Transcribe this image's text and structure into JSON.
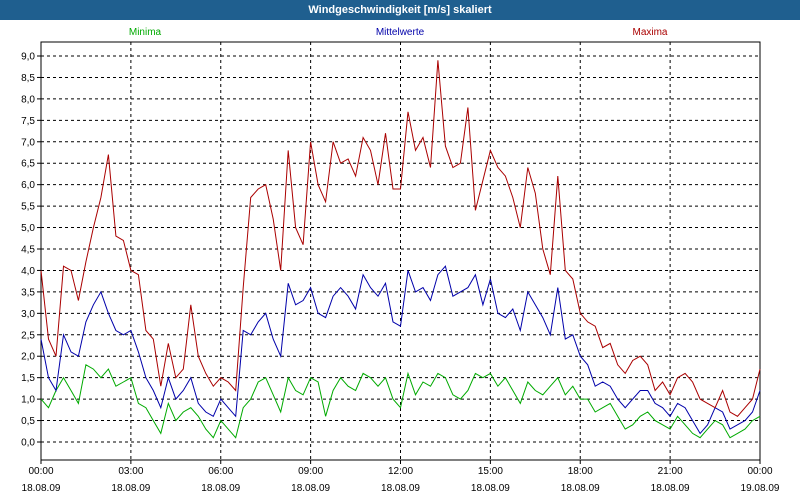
{
  "window": {
    "title": "Windgeschwindigkeit [m/s] skaliert"
  },
  "colors": {
    "minima": "#00aa00",
    "mittelwerte": "#0000aa",
    "maxima": "#aa0000",
    "titlebar": "#1f5f8f",
    "grid": "#000000"
  },
  "chart_data": {
    "type": "line",
    "title": "Windgeschwindigkeit [m/s] skaliert",
    "xlabel": "",
    "ylabel": "",
    "ylim": [
      0.0,
      9.0
    ],
    "ylim_note": "",
    "grid": true,
    "legend_placement": "top",
    "y_ticks": [
      "0,0",
      "0,5",
      "1,0",
      "1,5",
      "2,0",
      "2,5",
      "3,0",
      "3,5",
      "4,0",
      "4,5",
      "5,0",
      "5,5",
      "6,0",
      "6,5",
      "7,0",
      "7,5",
      "8,0",
      "8,5",
      "9,0"
    ],
    "x_ticks": [
      {
        "time": "00:00",
        "date": "18.08.09"
      },
      {
        "time": "03:00",
        "date": "18.08.09"
      },
      {
        "time": "06:00",
        "date": "18.08.09"
      },
      {
        "time": "09:00",
        "date": "18.08.09"
      },
      {
        "time": "12:00",
        "date": "18.08.09"
      },
      {
        "time": "15:00",
        "date": "18.08.09"
      },
      {
        "time": "18:00",
        "date": "18.08.09"
      },
      {
        "time": "21:00",
        "date": "18.08.09"
      },
      {
        "time": "00:00",
        "date": "19.08.09"
      }
    ],
    "x_hours": [
      0,
      0.25,
      0.5,
      0.75,
      1,
      1.25,
      1.5,
      1.75,
      2,
      2.25,
      2.5,
      2.75,
      3,
      3.25,
      3.5,
      3.75,
      4,
      4.25,
      4.5,
      4.75,
      5,
      5.25,
      5.5,
      5.75,
      6,
      6.25,
      6.5,
      6.75,
      7,
      7.25,
      7.5,
      7.75,
      8,
      8.25,
      8.5,
      8.75,
      9,
      9.25,
      9.5,
      9.75,
      10,
      10.25,
      10.5,
      10.75,
      11,
      11.25,
      11.5,
      11.75,
      12,
      12.25,
      12.5,
      12.75,
      13,
      13.25,
      13.5,
      13.75,
      14,
      14.25,
      14.5,
      14.75,
      15,
      15.25,
      15.5,
      15.75,
      16,
      16.25,
      16.5,
      16.75,
      17,
      17.25,
      17.5,
      17.75,
      18,
      18.25,
      18.5,
      18.75,
      19,
      19.25,
      19.5,
      19.75,
      20,
      20.25,
      20.5,
      20.75,
      21,
      21.25,
      21.5,
      21.75,
      22,
      22.25,
      22.5,
      22.75,
      23,
      23.25,
      23.5,
      23.75,
      24
    ],
    "series": [
      {
        "name": "Minima",
        "values": [
          1.0,
          0.8,
          1.2,
          1.5,
          1.2,
          0.9,
          1.8,
          1.7,
          1.5,
          1.7,
          1.3,
          1.4,
          1.5,
          0.9,
          0.8,
          0.5,
          0.2,
          0.9,
          0.5,
          0.7,
          0.8,
          0.6,
          0.3,
          0.1,
          0.5,
          0.3,
          0.1,
          0.8,
          1.0,
          1.4,
          1.5,
          1.1,
          0.7,
          1.5,
          1.2,
          1.1,
          1.5,
          1.4,
          0.6,
          1.2,
          1.5,
          1.3,
          1.2,
          1.6,
          1.5,
          1.3,
          1.5,
          1.0,
          0.8,
          1.6,
          1.1,
          1.4,
          1.3,
          1.6,
          1.5,
          1.1,
          1.0,
          1.2,
          1.6,
          1.5,
          1.6,
          1.3,
          1.5,
          1.2,
          0.9,
          1.4,
          1.2,
          1.1,
          1.3,
          1.5,
          1.1,
          1.3,
          1.0,
          1.0,
          0.7,
          0.8,
          0.9,
          0.6,
          0.3,
          0.4,
          0.6,
          0.7,
          0.5,
          0.4,
          0.3,
          0.6,
          0.4,
          0.2,
          0.1,
          0.3,
          0.5,
          0.4,
          0.1,
          0.2,
          0.3,
          0.5,
          0.6
        ]
      },
      {
        "name": "Mittelwerte",
        "values": [
          2.4,
          1.5,
          1.2,
          2.5,
          2.1,
          2.0,
          2.8,
          3.2,
          3.5,
          3.0,
          2.6,
          2.5,
          2.6,
          2.1,
          1.5,
          1.2,
          0.8,
          1.5,
          1.0,
          1.2,
          1.5,
          0.9,
          0.7,
          0.6,
          1.0,
          0.8,
          0.6,
          2.6,
          2.5,
          2.8,
          3.0,
          2.4,
          2.0,
          3.7,
          3.2,
          3.3,
          3.6,
          3.0,
          2.9,
          3.4,
          3.6,
          3.4,
          3.1,
          3.9,
          3.6,
          3.4,
          3.7,
          2.8,
          2.7,
          4.0,
          3.5,
          3.6,
          3.3,
          3.9,
          4.1,
          3.4,
          3.5,
          3.6,
          3.9,
          3.2,
          3.8,
          3.0,
          2.9,
          3.1,
          2.6,
          3.5,
          3.2,
          2.9,
          2.5,
          3.6,
          2.4,
          2.5,
          2.0,
          1.8,
          1.3,
          1.4,
          1.3,
          1.0,
          0.8,
          1.0,
          1.2,
          1.2,
          0.9,
          0.8,
          0.6,
          0.9,
          0.8,
          0.5,
          0.2,
          0.4,
          0.8,
          0.7,
          0.3,
          0.4,
          0.5,
          0.7,
          1.2
        ]
      },
      {
        "name": "Maxima",
        "values": [
          4.0,
          2.4,
          2.0,
          4.1,
          4.0,
          3.3,
          4.2,
          5.0,
          5.7,
          6.7,
          4.8,
          4.7,
          4.0,
          3.9,
          2.6,
          2.4,
          1.3,
          2.3,
          1.5,
          1.7,
          3.2,
          2.0,
          1.6,
          1.3,
          1.5,
          1.4,
          1.2,
          3.6,
          5.7,
          5.9,
          6.0,
          5.2,
          4.0,
          6.8,
          5.0,
          4.6,
          7.0,
          6.0,
          5.6,
          7.0,
          6.5,
          6.6,
          6.2,
          7.1,
          6.8,
          6.0,
          7.2,
          5.9,
          5.9,
          7.7,
          6.8,
          7.1,
          6.4,
          8.9,
          6.9,
          6.4,
          6.5,
          7.8,
          5.4,
          6.1,
          6.8,
          6.4,
          6.2,
          5.7,
          5.0,
          6.4,
          5.8,
          4.5,
          3.9,
          6.2,
          4.0,
          3.8,
          3.0,
          2.8,
          2.7,
          2.2,
          2.3,
          1.8,
          1.6,
          1.9,
          2.0,
          1.8,
          1.2,
          1.4,
          1.1,
          1.5,
          1.6,
          1.4,
          1.0,
          0.9,
          0.8,
          1.2,
          0.7,
          0.6,
          0.8,
          1.0,
          1.7
        ]
      }
    ]
  }
}
